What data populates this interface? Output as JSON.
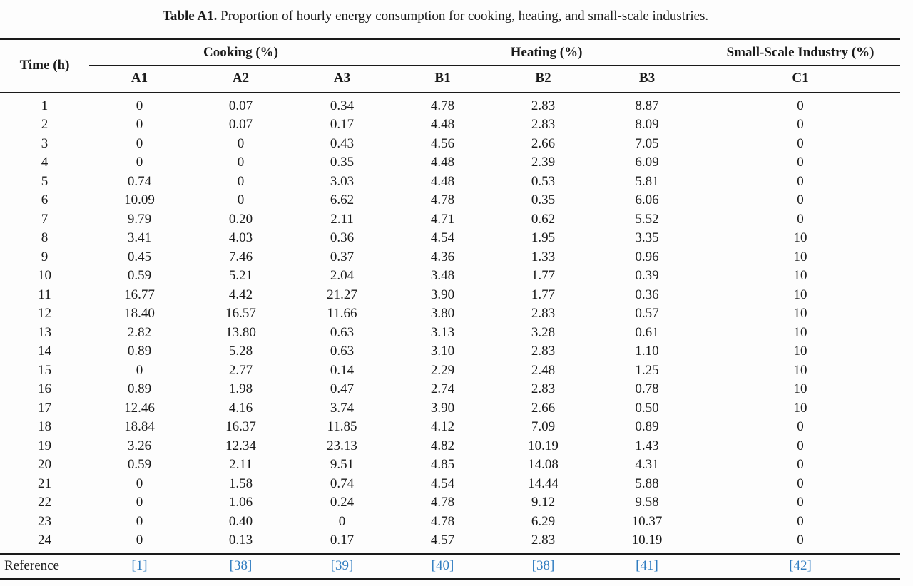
{
  "caption": {
    "label": "Table A1.",
    "text": "Proportion of hourly energy consumption for cooking, heating, and small-scale industries."
  },
  "table": {
    "time_header": "Time (h)",
    "groups": [
      {
        "label": "Cooking (%)",
        "columns": [
          "A1",
          "A2",
          "A3"
        ]
      },
      {
        "label": "Heating (%)",
        "columns": [
          "B1",
          "B2",
          "B3"
        ]
      },
      {
        "label": "Small-Scale Industry (%)",
        "columns": [
          "C1"
        ]
      }
    ],
    "rows": [
      {
        "time": "1",
        "values": [
          "0",
          "0.07",
          "0.34",
          "4.78",
          "2.83",
          "8.87",
          "0"
        ]
      },
      {
        "time": "2",
        "values": [
          "0",
          "0.07",
          "0.17",
          "4.48",
          "2.83",
          "8.09",
          "0"
        ]
      },
      {
        "time": "3",
        "values": [
          "0",
          "0",
          "0.43",
          "4.56",
          "2.66",
          "7.05",
          "0"
        ]
      },
      {
        "time": "4",
        "values": [
          "0",
          "0",
          "0.35",
          "4.48",
          "2.39",
          "6.09",
          "0"
        ]
      },
      {
        "time": "5",
        "values": [
          "0.74",
          "0",
          "3.03",
          "4.48",
          "0.53",
          "5.81",
          "0"
        ]
      },
      {
        "time": "6",
        "values": [
          "10.09",
          "0",
          "6.62",
          "4.78",
          "0.35",
          "6.06",
          "0"
        ]
      },
      {
        "time": "7",
        "values": [
          "9.79",
          "0.20",
          "2.11",
          "4.71",
          "0.62",
          "5.52",
          "0"
        ]
      },
      {
        "time": "8",
        "values": [
          "3.41",
          "4.03",
          "0.36",
          "4.54",
          "1.95",
          "3.35",
          "10"
        ]
      },
      {
        "time": "9",
        "values": [
          "0.45",
          "7.46",
          "0.37",
          "4.36",
          "1.33",
          "0.96",
          "10"
        ]
      },
      {
        "time": "10",
        "values": [
          "0.59",
          "5.21",
          "2.04",
          "3.48",
          "1.77",
          "0.39",
          "10"
        ]
      },
      {
        "time": "11",
        "values": [
          "16.77",
          "4.42",
          "21.27",
          "3.90",
          "1.77",
          "0.36",
          "10"
        ]
      },
      {
        "time": "12",
        "values": [
          "18.40",
          "16.57",
          "11.66",
          "3.80",
          "2.83",
          "0.57",
          "10"
        ]
      },
      {
        "time": "13",
        "values": [
          "2.82",
          "13.80",
          "0.63",
          "3.13",
          "3.28",
          "0.61",
          "10"
        ]
      },
      {
        "time": "14",
        "values": [
          "0.89",
          "5.28",
          "0.63",
          "3.10",
          "2.83",
          "1.10",
          "10"
        ]
      },
      {
        "time": "15",
        "values": [
          "0",
          "2.77",
          "0.14",
          "2.29",
          "2.48",
          "1.25",
          "10"
        ]
      },
      {
        "time": "16",
        "values": [
          "0.89",
          "1.98",
          "0.47",
          "2.74",
          "2.83",
          "0.78",
          "10"
        ]
      },
      {
        "time": "17",
        "values": [
          "12.46",
          "4.16",
          "3.74",
          "3.90",
          "2.66",
          "0.50",
          "10"
        ]
      },
      {
        "time": "18",
        "values": [
          "18.84",
          "16.37",
          "11.85",
          "4.12",
          "7.09",
          "0.89",
          "0"
        ]
      },
      {
        "time": "19",
        "values": [
          "3.26",
          "12.34",
          "23.13",
          "4.82",
          "10.19",
          "1.43",
          "0"
        ]
      },
      {
        "time": "20",
        "values": [
          "0.59",
          "2.11",
          "9.51",
          "4.85",
          "14.08",
          "4.31",
          "0"
        ]
      },
      {
        "time": "21",
        "values": [
          "0",
          "1.58",
          "0.74",
          "4.54",
          "14.44",
          "5.88",
          "0"
        ]
      },
      {
        "time": "22",
        "values": [
          "0",
          "1.06",
          "0.24",
          "4.78",
          "9.12",
          "9.58",
          "0"
        ]
      },
      {
        "time": "23",
        "values": [
          "0",
          "0.40",
          "0",
          "4.78",
          "6.29",
          "10.37",
          "0"
        ]
      },
      {
        "time": "24",
        "values": [
          "0",
          "0.13",
          "0.17",
          "4.57",
          "2.83",
          "10.19",
          "0"
        ]
      }
    ],
    "reference": {
      "label": "Reference",
      "citations": [
        "[1]",
        "[38]",
        "[39]",
        "[40]",
        "[38]",
        "[41]",
        "[42]"
      ]
    }
  },
  "colors": {
    "text": "#1a1a1a",
    "rule": "#1a1a1a",
    "citation_link": "#2f7cc0",
    "background": "#fdfdfd"
  }
}
